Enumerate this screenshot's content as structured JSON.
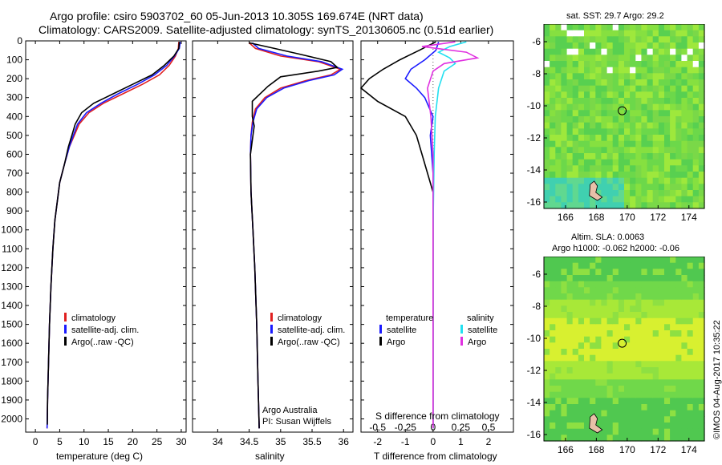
{
  "header": {
    "line1": "Argo profile: csiro 5903702_60 05-Jun-2013 10.305S 169.674E (NRT data)",
    "line2": "Climatology: CARS2009. Satellite-adjusted climatology: synTS_20130605.nc (0.51d earlier)"
  },
  "colors": {
    "climatology": "#e02020",
    "satellite": "#1a1aff",
    "argo": "#000000",
    "salinity_sat": "#22e0f0",
    "salinity_argo": "#e030e0"
  },
  "chart_data": [
    {
      "type": "line",
      "name": "temperature-profile",
      "xlabel": "temperature (deg C)",
      "ylabel": "",
      "xlim": [
        -2,
        31
      ],
      "ylim": [
        2070,
        0
      ],
      "xticks": [
        0,
        5,
        10,
        15,
        20,
        25,
        30
      ],
      "yticks": [
        0,
        100,
        200,
        300,
        400,
        500,
        600,
        700,
        800,
        900,
        1000,
        1100,
        1200,
        1300,
        1400,
        1500,
        1600,
        1700,
        1800,
        1900,
        2000
      ],
      "legend": [
        "climatology",
        "satellite-adj. clim.",
        "Argo(..raw -QC)"
      ],
      "series": [
        {
          "name": "climatology",
          "color": "#e02020",
          "points": [
            [
              29.5,
              5
            ],
            [
              29.4,
              40
            ],
            [
              28.8,
              80
            ],
            [
              27.5,
              130
            ],
            [
              25.5,
              180
            ],
            [
              22,
              230
            ],
            [
              18,
              280
            ],
            [
              14,
              330
            ],
            [
              11,
              380
            ],
            [
              9,
              440
            ],
            [
              8,
              500
            ],
            [
              7,
              560
            ],
            [
              6,
              650
            ],
            [
              5,
              750
            ],
            [
              4.5,
              850
            ],
            [
              4,
              950
            ],
            [
              3.6,
              1100
            ],
            [
              3.2,
              1300
            ],
            [
              2.9,
              1500
            ],
            [
              2.7,
              1700
            ],
            [
              2.5,
              1900
            ],
            [
              2.4,
              2050
            ]
          ]
        },
        {
          "name": "satellite",
          "color": "#1a1aff",
          "points": [
            [
              29.8,
              5
            ],
            [
              29.6,
              40
            ],
            [
              28.6,
              80
            ],
            [
              27,
              130
            ],
            [
              24.5,
              180
            ],
            [
              21,
              230
            ],
            [
              17,
              280
            ],
            [
              13.5,
              330
            ],
            [
              10.5,
              380
            ],
            [
              8.7,
              440
            ],
            [
              7.8,
              500
            ],
            [
              7,
              560
            ],
            [
              6,
              650
            ],
            [
              5,
              750
            ],
            [
              4.5,
              850
            ],
            [
              4,
              950
            ],
            [
              3.6,
              1100
            ],
            [
              3.2,
              1300
            ],
            [
              2.9,
              1500
            ],
            [
              2.7,
              1700
            ],
            [
              2.5,
              1900
            ],
            [
              2.4,
              2050
            ]
          ]
        },
        {
          "name": "argo",
          "color": "#000000",
          "points": [
            [
              29.6,
              5
            ],
            [
              29.5,
              40
            ],
            [
              28.5,
              80
            ],
            [
              26.5,
              130
            ],
            [
              24,
              180
            ],
            [
              20,
              230
            ],
            [
              16,
              280
            ],
            [
              12,
              330
            ],
            [
              9.5,
              380
            ],
            [
              8.2,
              440
            ],
            [
              7.5,
              500
            ],
            [
              6.8,
              560
            ],
            [
              6,
              650
            ],
            [
              5,
              750
            ],
            [
              4.5,
              850
            ],
            [
              4,
              950
            ],
            [
              3.6,
              1100
            ],
            [
              3.2,
              1300
            ],
            [
              2.9,
              1500
            ],
            [
              2.7,
              1700
            ],
            [
              2.5,
              1900
            ],
            [
              2.45,
              2030
            ]
          ]
        }
      ]
    },
    {
      "type": "line",
      "name": "salinity-profile",
      "xlabel": "salinity",
      "xlim": [
        33.6,
        36.15
      ],
      "ylim": [
        2070,
        0
      ],
      "xticks": [
        34,
        34.5,
        35,
        35.5,
        36
      ],
      "legend": [
        "climatology",
        "satellite-adj. clim.",
        "Argo(..raw -QC)"
      ],
      "annotation": [
        "Argo Australia",
        "PI: Susan Wijffels"
      ],
      "series": [
        {
          "name": "climatology",
          "color": "#e02020",
          "points": [
            [
              34.5,
              10
            ],
            [
              34.6,
              40
            ],
            [
              35.0,
              80
            ],
            [
              35.6,
              110
            ],
            [
              35.95,
              150
            ],
            [
              35.8,
              180
            ],
            [
              35.4,
              210
            ],
            [
              35.0,
              250
            ],
            [
              34.75,
              300
            ],
            [
              34.6,
              360
            ],
            [
              34.55,
              430
            ],
            [
              34.53,
              500
            ],
            [
              34.52,
              600
            ],
            [
              34.53,
              800
            ],
            [
              34.56,
              1000
            ],
            [
              34.59,
              1200
            ],
            [
              34.62,
              1500
            ],
            [
              34.64,
              1800
            ],
            [
              34.66,
              2050
            ]
          ]
        },
        {
          "name": "satellite",
          "color": "#1a1aff",
          "points": [
            [
              34.55,
              10
            ],
            [
              34.65,
              40
            ],
            [
              35.1,
              80
            ],
            [
              35.65,
              110
            ],
            [
              35.98,
              150
            ],
            [
              35.85,
              180
            ],
            [
              35.45,
              210
            ],
            [
              35.05,
              250
            ],
            [
              34.78,
              300
            ],
            [
              34.62,
              360
            ],
            [
              34.56,
              430
            ],
            [
              34.53,
              500
            ],
            [
              34.52,
              600
            ],
            [
              34.53,
              800
            ],
            [
              34.56,
              1000
            ],
            [
              34.59,
              1200
            ],
            [
              34.62,
              1500
            ],
            [
              34.64,
              1800
            ],
            [
              34.66,
              2050
            ]
          ]
        },
        {
          "name": "argo",
          "color": "#000000",
          "points": [
            [
              34.5,
              10
            ],
            [
              34.9,
              40
            ],
            [
              35.3,
              70
            ],
            [
              35.8,
              110
            ],
            [
              35.9,
              140
            ],
            [
              35.6,
              160
            ],
            [
              35.0,
              190
            ],
            [
              34.8,
              240
            ],
            [
              34.55,
              320
            ],
            [
              34.55,
              400
            ],
            [
              34.58,
              450
            ],
            [
              34.56,
              500
            ],
            [
              34.52,
              600
            ],
            [
              34.53,
              800
            ],
            [
              34.56,
              1000
            ],
            [
              34.59,
              1200
            ],
            [
              34.62,
              1500
            ],
            [
              34.64,
              1800
            ],
            [
              34.66,
              2050
            ]
          ]
        }
      ]
    },
    {
      "type": "line",
      "name": "difference-profile",
      "xlabel": "T difference from climatology",
      "xlabel2": "S difference from climatology",
      "xlim": [
        -2.6,
        2.9
      ],
      "ylim": [
        2070,
        0
      ],
      "xticks_T": [
        -2,
        -1,
        0,
        1,
        2
      ],
      "xticks_S": [
        -0.5,
        -0.25,
        0,
        0.25,
        0.5
      ],
      "legend_temperature": [
        "temperature",
        "satellite",
        "Argo"
      ],
      "legend_salinity": [
        "salinity",
        "satellite",
        "Argo"
      ],
      "series": [
        {
          "name": "temperature satellite",
          "color": "#1a1aff",
          "points": [
            [
              0.2,
              5
            ],
            [
              0.1,
              50
            ],
            [
              -0.3,
              100
            ],
            [
              -0.8,
              150
            ],
            [
              -1.0,
              200
            ],
            [
              -0.6,
              250
            ],
            [
              -0.3,
              300
            ],
            [
              0.0,
              400
            ],
            [
              -0.1,
              500
            ],
            [
              0,
              700
            ],
            [
              0,
              1000
            ],
            [
              0,
              1500
            ],
            [
              0,
              2050
            ]
          ]
        },
        {
          "name": "temperature argo",
          "color": "#000000",
          "points": [
            [
              0.1,
              5
            ],
            [
              -0.5,
              50
            ],
            [
              -1.2,
              100
            ],
            [
              -1.8,
              150
            ],
            [
              -2.3,
              200
            ],
            [
              -2.6,
              250
            ],
            [
              -2.0,
              320
            ],
            [
              -1.0,
              400
            ],
            [
              -0.6,
              500
            ],
            [
              -0.4,
              600
            ],
            [
              -0.2,
              700
            ],
            [
              0,
              800
            ],
            [
              0,
              1000
            ],
            [
              0,
              1500
            ],
            [
              0,
              2050
            ]
          ]
        },
        {
          "name": "salinity satellite",
          "color": "#22e0f0",
          "points": [
            [
              0.3,
              5
            ],
            [
              0.15,
              30
            ],
            [
              0.05,
              60
            ],
            [
              0.15,
              90
            ],
            [
              0.2,
              120
            ],
            [
              0.1,
              160
            ],
            [
              0.05,
              250
            ],
            [
              0.02,
              400
            ],
            [
              0.01,
              600
            ],
            [
              0,
              1000
            ],
            [
              0,
              2050
            ]
          ]
        },
        {
          "name": "salinity argo",
          "color": "#e030e0",
          "points": [
            [
              0.2,
              5
            ],
            [
              -0.1,
              30
            ],
            [
              0.3,
              60
            ],
            [
              0.4,
              90
            ],
            [
              0.1,
              120
            ],
            [
              0.0,
              160
            ],
            [
              -0.05,
              250
            ],
            [
              -0.02,
              400
            ],
            [
              0,
              600
            ],
            [
              0,
              1000
            ],
            [
              0,
              2050
            ]
          ]
        }
      ]
    },
    {
      "type": "heatmap",
      "name": "sst-map",
      "title": "sat. SST: 29.7  Argo: 29.2",
      "xticks": [
        166,
        168,
        170,
        172,
        174
      ],
      "yticks": [
        -6,
        -8,
        -10,
        -12,
        -14,
        -16
      ],
      "xlim": [
        164.6,
        175
      ],
      "ylim": [
        -16.4,
        -4.9
      ],
      "marker": [
        169.674,
        -10.305
      ]
    },
    {
      "type": "heatmap",
      "name": "sla-map",
      "title_line1": "Altim. SLA: 0.0063",
      "title_line2": "Argo h1000: -0.062 h2000: -0.06",
      "xticks": [
        166,
        168,
        170,
        172,
        174
      ],
      "yticks": [
        -6,
        -8,
        -10,
        -12,
        -14,
        -16
      ],
      "xlim": [
        164.6,
        175
      ],
      "ylim": [
        -16.4,
        -4.9
      ],
      "marker": [
        169.674,
        -10.305
      ]
    }
  ],
  "footer": {
    "credit": "©IMOS 04-Aug-2017 10:35:22"
  }
}
